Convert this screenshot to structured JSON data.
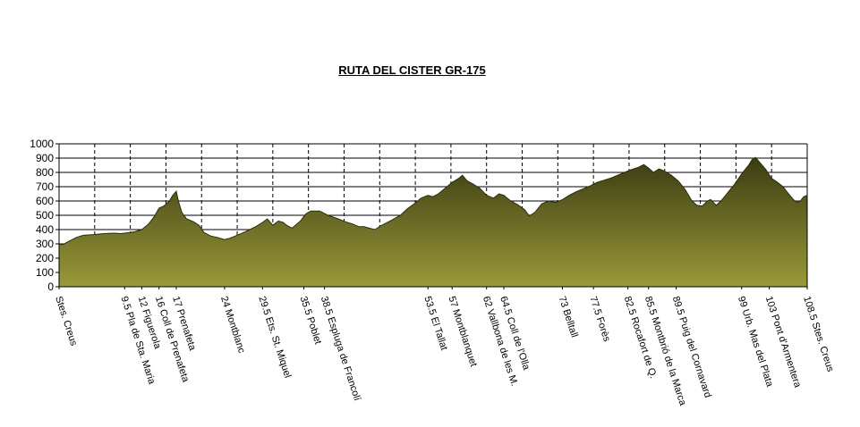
{
  "chart_data": {
    "type": "area",
    "title": "RUTA DEL CISTER GR-175",
    "xlabel": "",
    "ylabel": "",
    "ylim": [
      0,
      1000
    ],
    "yticks": [
      0,
      100,
      200,
      300,
      400,
      500,
      600,
      700,
      800,
      900,
      1000
    ],
    "xlim": [
      0,
      108.5
    ],
    "grid": true,
    "legend": "none",
    "colors": {
      "fill_top": "#3b3b12",
      "fill_bottom": "#9a9a3a",
      "outline": "#2c2c0c"
    },
    "series": [
      {
        "values": [
          [
            0.0,
            300
          ],
          [
            0.5,
            295
          ],
          [
            1.5,
            320
          ],
          [
            2.5,
            345
          ],
          [
            3.5,
            360
          ],
          [
            5.0,
            365
          ],
          [
            6.5,
            372
          ],
          [
            8.0,
            375
          ],
          [
            9.0,
            372
          ],
          [
            10.0,
            378
          ],
          [
            11.0,
            385
          ],
          [
            12.0,
            400
          ],
          [
            13.0,
            440
          ],
          [
            13.8,
            490
          ],
          [
            14.5,
            550
          ],
          [
            15.2,
            565
          ],
          [
            16.0,
            600
          ],
          [
            16.5,
            640
          ],
          [
            17.0,
            668
          ],
          [
            17.3,
            600
          ],
          [
            17.8,
            520
          ],
          [
            18.5,
            475
          ],
          [
            19.5,
            455
          ],
          [
            20.3,
            430
          ],
          [
            21.0,
            380
          ],
          [
            22.0,
            355
          ],
          [
            23.0,
            345
          ],
          [
            24.0,
            330
          ],
          [
            24.8,
            340
          ],
          [
            25.8,
            360
          ],
          [
            27.0,
            385
          ],
          [
            28.5,
            420
          ],
          [
            29.5,
            450
          ],
          [
            30.2,
            475
          ],
          [
            31.0,
            430
          ],
          [
            31.8,
            460
          ],
          [
            32.5,
            450
          ],
          [
            33.0,
            430
          ],
          [
            33.8,
            410
          ],
          [
            35.0,
            460
          ],
          [
            35.8,
            510
          ],
          [
            36.5,
            530
          ],
          [
            37.8,
            530
          ],
          [
            39.0,
            500
          ],
          [
            40.5,
            475
          ],
          [
            41.5,
            455
          ],
          [
            42.5,
            440
          ],
          [
            43.5,
            420
          ],
          [
            44.2,
            420
          ],
          [
            45.0,
            410
          ],
          [
            45.8,
            400
          ],
          [
            46.8,
            430
          ],
          [
            48.0,
            460
          ],
          [
            49.5,
            500
          ],
          [
            50.5,
            545
          ],
          [
            51.5,
            580
          ],
          [
            52.5,
            620
          ],
          [
            53.5,
            640
          ],
          [
            54.2,
            630
          ],
          [
            55.0,
            650
          ],
          [
            56.0,
            690
          ],
          [
            57.0,
            730
          ],
          [
            58.0,
            760
          ],
          [
            58.5,
            780
          ],
          [
            59.2,
            740
          ],
          [
            60.0,
            720
          ],
          [
            61.0,
            690
          ],
          [
            62.0,
            640
          ],
          [
            63.0,
            620
          ],
          [
            63.8,
            650
          ],
          [
            64.5,
            640
          ],
          [
            65.5,
            600
          ],
          [
            66.5,
            575
          ],
          [
            67.5,
            540
          ],
          [
            68.2,
            495
          ],
          [
            69.0,
            520
          ],
          [
            70.0,
            580
          ],
          [
            71.0,
            600
          ],
          [
            72.0,
            590
          ],
          [
            73.0,
            610
          ],
          [
            74.0,
            640
          ],
          [
            75.0,
            665
          ],
          [
            76.0,
            685
          ],
          [
            77.0,
            705
          ],
          [
            78.0,
            730
          ],
          [
            79.0,
            745
          ],
          [
            80.0,
            760
          ],
          [
            81.0,
            780
          ],
          [
            82.0,
            800
          ],
          [
            83.0,
            820
          ],
          [
            84.0,
            835
          ],
          [
            84.8,
            855
          ],
          [
            85.5,
            830
          ],
          [
            86.2,
            800
          ],
          [
            87.0,
            825
          ],
          [
            87.8,
            810
          ],
          [
            88.8,
            780
          ],
          [
            89.8,
            740
          ],
          [
            90.8,
            680
          ],
          [
            91.8,
            600
          ],
          [
            92.5,
            570
          ],
          [
            93.3,
            565
          ],
          [
            94.0,
            600
          ],
          [
            94.5,
            610
          ],
          [
            95.3,
            570
          ],
          [
            96.0,
            600
          ],
          [
            97.0,
            660
          ],
          [
            98.0,
            720
          ],
          [
            99.0,
            790
          ],
          [
            100.0,
            850
          ],
          [
            100.5,
            890
          ],
          [
            101.0,
            905
          ],
          [
            101.8,
            860
          ],
          [
            102.5,
            820
          ],
          [
            103.3,
            760
          ],
          [
            104.2,
            730
          ],
          [
            105.0,
            700
          ],
          [
            105.8,
            650
          ],
          [
            106.5,
            610
          ],
          [
            107.0,
            590
          ],
          [
            107.5,
            600
          ],
          [
            108.0,
            630
          ],
          [
            108.5,
            640
          ]
        ]
      }
    ],
    "x_labels": [
      {
        "at": 0.0,
        "text": "Stes. Creus"
      },
      {
        "at": 9.5,
        "text": "9.5 Pla de Sta. Maria"
      },
      {
        "at": 12.0,
        "text": "12 Figuerola"
      },
      {
        "at": 14.5,
        "text": "16 Coll de Prenafeta"
      },
      {
        "at": 17.0,
        "text": "17 Prenafeta"
      },
      {
        "at": 24.0,
        "text": "24 Montblanc"
      },
      {
        "at": 29.5,
        "text": "29.5 Ets. St. Miquel"
      },
      {
        "at": 35.5,
        "text": "35.5 Poblet"
      },
      {
        "at": 38.5,
        "text": "38.5 Espluga de Francolí"
      },
      {
        "at": 53.5,
        "text": "53.5 El Tallat"
      },
      {
        "at": 57.0,
        "text": "57 Montblanquet"
      },
      {
        "at": 62.0,
        "text": "62 Vallbona de les M."
      },
      {
        "at": 64.5,
        "text": "64.5 Coll de l'Olla"
      },
      {
        "at": 73.0,
        "text": "73 Belltall"
      },
      {
        "at": 77.5,
        "text": "77.5 Forès"
      },
      {
        "at": 82.5,
        "text": "82.5 Rocafort de Q."
      },
      {
        "at": 85.5,
        "text": "85.5 Montbrió de la Marca"
      },
      {
        "at": 89.5,
        "text": "89.5 Puig del Cornavard"
      },
      {
        "at": 99.0,
        "text": "99 Urb. Mas del Plata"
      },
      {
        "at": 103.0,
        "text": "103 Pont d'Armentera"
      },
      {
        "at": 108.5,
        "text": "108.5 Stes. Creus"
      }
    ]
  }
}
